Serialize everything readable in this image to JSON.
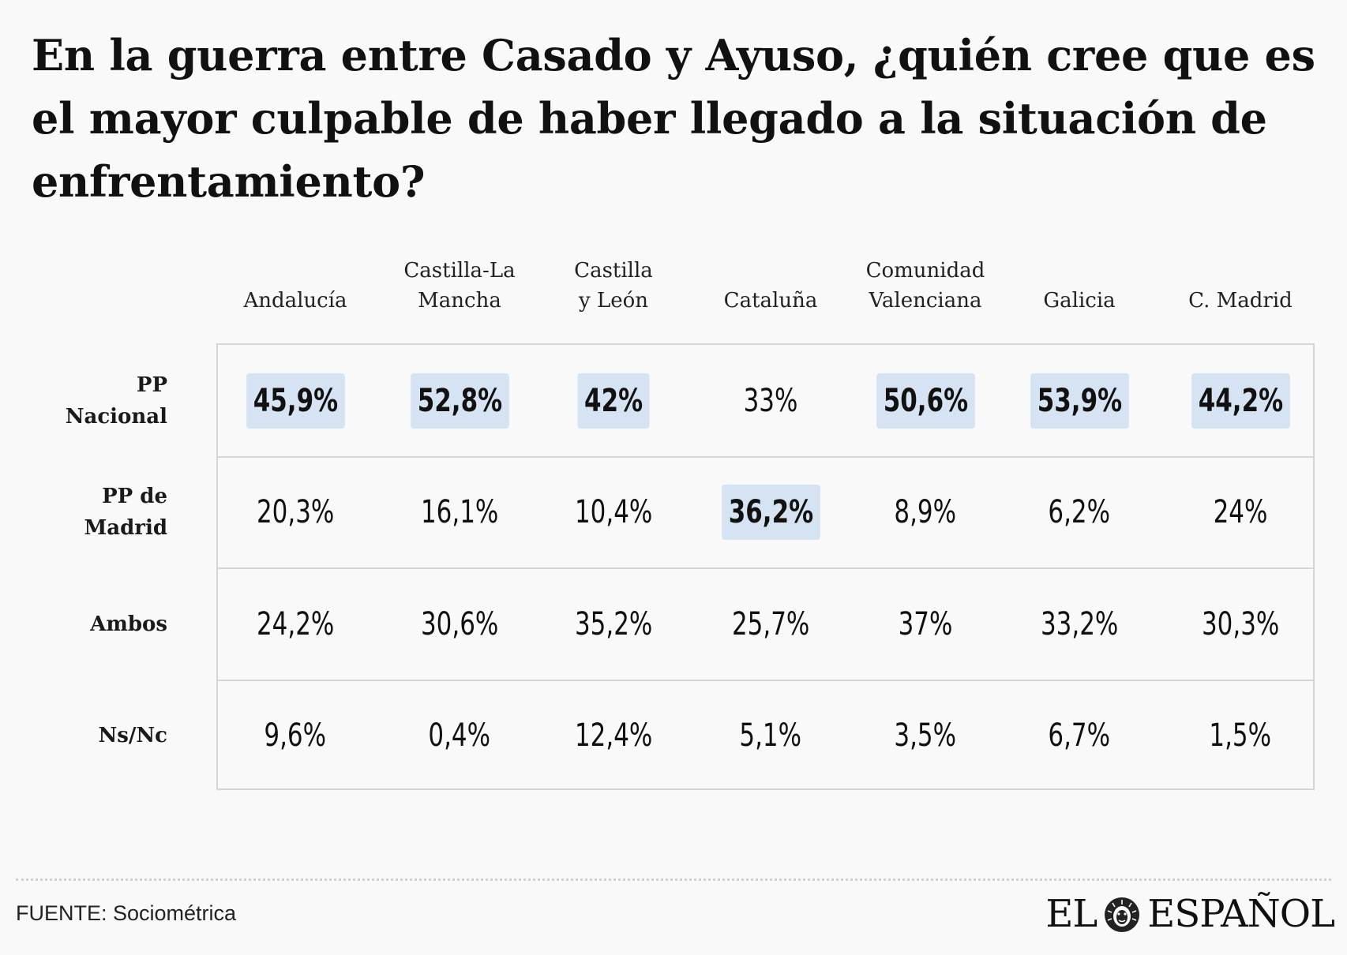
{
  "title": "En la guerra entre Casado y Ayuso, ¿quién cree que es el mayor culpable de haber llegado a la situación de enfrentamiento?",
  "source": "FUENTE: Sociométrica",
  "logo": {
    "left": "EL",
    "right": "ESPAÑOL"
  },
  "colors": {
    "highlight": "#d5e3f3",
    "border": "#d6d6d6",
    "background": "#f9f9f9"
  },
  "chart_data": {
    "type": "table",
    "title": "En la guerra entre Casado y Ayuso, ¿quién cree que es el mayor culpable de haber llegado a la situación de enfrentamiento?",
    "columns": [
      "Andalucía",
      "Castilla-La\nMancha",
      "Castilla\ny León",
      "Cataluña",
      "Comunidad\nValenciana",
      "Galicia",
      "C. Madrid"
    ],
    "rows": [
      {
        "label": "PP\nNacional",
        "values": [
          "45,9%",
          "52,8%",
          "42%",
          "33%",
          "50,6%",
          "53,9%",
          "44,2%"
        ],
        "highlight": [
          true,
          true,
          true,
          false,
          true,
          true,
          true
        ]
      },
      {
        "label": "PP de\nMadrid",
        "values": [
          "20,3%",
          "16,1%",
          "10,4%",
          "36,2%",
          "8,9%",
          "6,2%",
          "24%"
        ],
        "highlight": [
          false,
          false,
          false,
          true,
          false,
          false,
          false
        ]
      },
      {
        "label": "Ambos",
        "values": [
          "24,2%",
          "30,6%",
          "35,2%",
          "25,7%",
          "37%",
          "33,2%",
          "30,3%"
        ],
        "highlight": [
          false,
          false,
          false,
          false,
          false,
          false,
          false
        ]
      },
      {
        "label": "Ns/Nc",
        "values": [
          "9,6%",
          "0,4%",
          "12,4%",
          "5,1%",
          "3,5%",
          "6,7%",
          "1,5%"
        ],
        "highlight": [
          false,
          false,
          false,
          false,
          false,
          false,
          false
        ]
      }
    ]
  }
}
